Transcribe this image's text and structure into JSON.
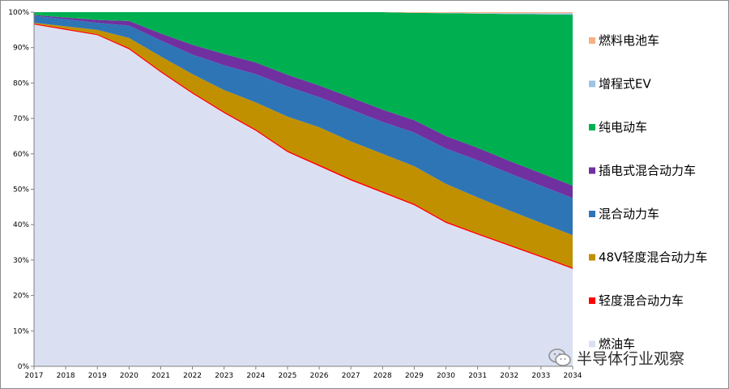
{
  "chart_data": {
    "type": "area",
    "stacked": "percent",
    "x": [
      "2017",
      "2018",
      "2019",
      "2020",
      "2021",
      "2022",
      "2023",
      "2024",
      "2025",
      "2026",
      "2027",
      "2028",
      "2029",
      "2030",
      "2031",
      "2032",
      "2033",
      "2034"
    ],
    "ylim": [
      0,
      100
    ],
    "yticks": [
      "0%",
      "10%",
      "20%",
      "30%",
      "40%",
      "50%",
      "60%",
      "70%",
      "80%",
      "90%",
      "100%"
    ],
    "legend_position": "right",
    "series": [
      {
        "name": "燃油车",
        "color": "#dae0f2",
        "values": [
          96.5,
          95,
          93.5,
          89.5,
          83,
          77,
          71.5,
          66.5,
          60.5,
          56.5,
          52.5,
          49,
          45.5,
          40.5,
          37.2,
          34,
          30.8,
          27.5
        ]
      },
      {
        "name": "轻度混合动力车",
        "color": "#ff0000",
        "values": [
          0.3,
          0.3,
          0.3,
          0.4,
          0.4,
          0.4,
          0.4,
          0.4,
          0.4,
          0.4,
          0.4,
          0.4,
          0.4,
          0.4,
          0.4,
          0.4,
          0.4,
          0.4
        ]
      },
      {
        "name": "48V轻度混合动力车",
        "color": "#c09000",
        "values": [
          0.2,
          0.7,
          1.2,
          2.8,
          4.1,
          5.1,
          6.1,
          7.6,
          9.6,
          10.6,
          10.6,
          10.6,
          10.6,
          10.6,
          10.1,
          9.6,
          9.3,
          9.1
        ]
      },
      {
        "name": "混合动力车",
        "color": "#2e75b6",
        "values": [
          2.0,
          2.0,
          2.0,
          3.5,
          4.5,
          5.5,
          7.0,
          8.0,
          8.5,
          8.5,
          9.0,
          9.0,
          9.5,
          10.0,
          10.5,
          10.5,
          10.5,
          10.5
        ]
      },
      {
        "name": "插电式混合动力车",
        "color": "#7030a0",
        "values": [
          0.2,
          0.5,
          0.8,
          1.3,
          2.0,
          2.8,
          3.2,
          3.3,
          3.3,
          3.3,
          3.4,
          3.5,
          3.5,
          3.5,
          3.5,
          3.5,
          3.5,
          3.5
        ]
      },
      {
        "name": "纯电动车",
        "color": "#00b050",
        "values": [
          0.8,
          1.5,
          2.2,
          2.5,
          6.0,
          9.2,
          11.8,
          14.2,
          17.7,
          20.7,
          24.1,
          27.5,
          30.3,
          34.7,
          37.9,
          41.5,
          44.9,
          48.3
        ]
      },
      {
        "name": "增程式EV",
        "color": "#9dc3e6",
        "values": [
          0,
          0,
          0,
          0,
          0,
          0,
          0,
          0,
          0,
          0,
          0,
          0,
          0,
          0.1,
          0.1,
          0.2,
          0.3,
          0.4
        ]
      },
      {
        "name": "燃料电池车",
        "color": "#f4b183",
        "values": [
          0,
          0,
          0,
          0,
          0,
          0,
          0,
          0,
          0,
          0,
          0,
          0,
          0.2,
          0.2,
          0.3,
          0.3,
          0.3,
          0.3
        ]
      }
    ]
  },
  "watermark": {
    "text": "半导体行业观察"
  }
}
